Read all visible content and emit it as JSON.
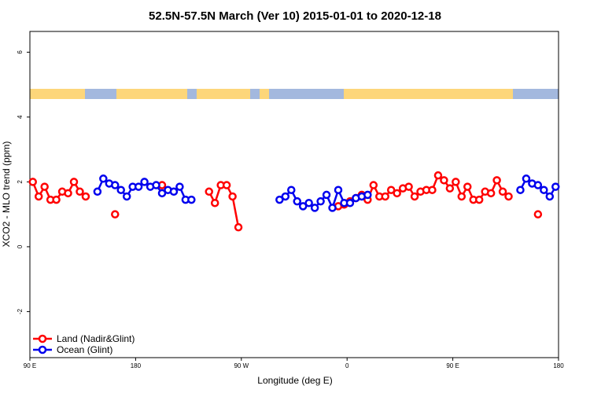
{
  "chart_data": {
    "type": "line",
    "title": "52.5N-57.5N March (Ver 10)   2015-01-01 to 2020-12-18",
    "x_label": "Longitude (deg E)",
    "y_label": "XCO2 - MLO trend (ppm)",
    "xlim": [
      90,
      540
    ],
    "ylim": [
      -3.42,
      6.64
    ],
    "xticks": [
      {
        "value": 90,
        "label": "90 E"
      },
      180,
      {
        "value": 270,
        "label": "90 W"
      },
      {
        "value": 360,
        "label": "0"
      },
      {
        "value": 450,
        "label": "90 E"
      },
      {
        "value": 540,
        "label": "180"
      }
    ],
    "yticks": [
      -2,
      0,
      2,
      4,
      6
    ],
    "legend": "bottomleft",
    "x": [
      92.5,
      97.5,
      102.5,
      107.5,
      112.5,
      117.5,
      122.5,
      127.5,
      132.5,
      137.5,
      142.5,
      147.5,
      152.5,
      157.5,
      162.5,
      167.5,
      172.5,
      177.5,
      182.5,
      187.5,
      192.5,
      197.5,
      202.5,
      207.5,
      212.5,
      217.5,
      222.5,
      227.5,
      232.5,
      237.5,
      242.5,
      247.5,
      252.5,
      257.5,
      262.5,
      267.5,
      272.5,
      277.5,
      282.5,
      287.5,
      292.5,
      297.5,
      302.5,
      307.5,
      312.5,
      317.5,
      322.5,
      327.5,
      332.5,
      337.5,
      342.5,
      347.5,
      352.5,
      357.5,
      362.5,
      367.5,
      372.5,
      377.5,
      382.5,
      387.5,
      392.5,
      397.5,
      402.5,
      407.5,
      412.5,
      417.5,
      422.5,
      427.5,
      432.5,
      437.5,
      442.5,
      447.5,
      452.5,
      457.5,
      462.5,
      467.5,
      472.5,
      477.5,
      482.5,
      487.5,
      492.5,
      497.5,
      502.5,
      507.5,
      512.5,
      517.5,
      522.5,
      527.5,
      532.5,
      537.5
    ],
    "series": [
      {
        "name": "Land (Nadir&Glint)",
        "color": "#ff0000",
        "values": [
          2.0,
          1.55,
          1.85,
          1.45,
          1.45,
          1.7,
          1.65,
          2.0,
          1.7,
          1.55,
          null,
          null,
          null,
          null,
          1.0,
          null,
          null,
          null,
          null,
          null,
          null,
          null,
          1.9,
          null,
          null,
          null,
          null,
          null,
          null,
          null,
          1.7,
          1.35,
          1.9,
          1.9,
          1.55,
          0.6,
          null,
          null,
          null,
          null,
          null,
          null,
          null,
          null,
          null,
          null,
          null,
          null,
          null,
          null,
          null,
          null,
          1.25,
          1.3,
          1.4,
          1.5,
          1.6,
          1.45,
          1.9,
          1.55,
          1.55,
          1.75,
          1.65,
          1.8,
          1.85,
          1.55,
          1.7,
          1.75,
          1.75,
          2.2,
          2.05,
          1.8,
          2.0,
          1.55,
          1.85,
          1.45,
          1.45,
          1.7,
          1.65,
          2.05,
          1.7,
          1.55,
          null,
          null,
          null,
          null,
          1.0,
          null,
          null,
          null
        ]
      },
      {
        "name": "Ocean (Glint)",
        "color": "#0000ee",
        "values": [
          null,
          null,
          null,
          null,
          null,
          null,
          null,
          null,
          null,
          null,
          null,
          1.7,
          2.1,
          1.95,
          1.9,
          1.75,
          1.55,
          1.85,
          1.85,
          2.0,
          1.85,
          1.9,
          1.65,
          1.75,
          1.7,
          1.85,
          1.45,
          1.45,
          null,
          null,
          null,
          null,
          null,
          null,
          null,
          null,
          null,
          null,
          null,
          null,
          null,
          null,
          1.45,
          1.55,
          1.75,
          1.4,
          1.25,
          1.35,
          1.2,
          1.4,
          1.6,
          1.2,
          1.75,
          1.35,
          1.35,
          1.5,
          1.55,
          1.6,
          null,
          null,
          null,
          null,
          null,
          null,
          null,
          null,
          null,
          null,
          null,
          null,
          null,
          null,
          null,
          null,
          null,
          null,
          null,
          null,
          null,
          null,
          null,
          null,
          null,
          1.75,
          2.1,
          1.95,
          1.9,
          1.75,
          1.55,
          1.85
        ]
      }
    ]
  }
}
